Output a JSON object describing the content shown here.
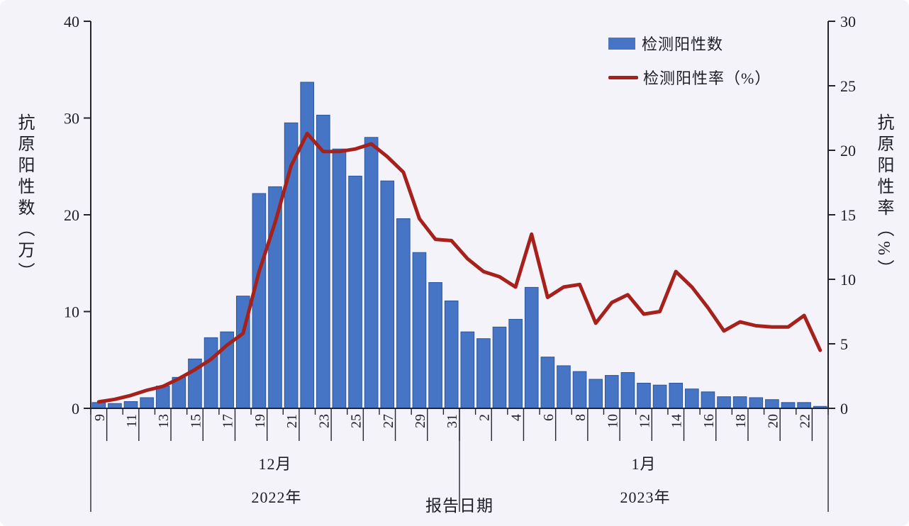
{
  "figure": {
    "background_color": "#f3f3f9",
    "bar_color": "#4575c4",
    "bar_edge_color": "#2d559e",
    "line_color": "#a6211c",
    "axis_color": "#23242e",
    "text_color": "#1c1c26",
    "legend": {
      "bar_label": "检测阳性数",
      "line_label": "检测阳性率（%）"
    },
    "left_axis": {
      "title": "抗原阳性数（万）",
      "ticks": [
        0,
        10,
        20,
        30,
        40
      ],
      "max": 40
    },
    "right_axis": {
      "title": "抗原阳性率（%）",
      "ticks": [
        0,
        5,
        10,
        15,
        20,
        25,
        30
      ],
      "max": 30
    },
    "x_axis": {
      "title": "报告日期",
      "tick_labels": [
        "9",
        "11",
        "13",
        "15",
        "17",
        "19",
        "21",
        "23",
        "25",
        "27",
        "29",
        "31",
        "2",
        "4",
        "6",
        "8",
        "10",
        "12",
        "14",
        "16",
        "18",
        "20",
        "22"
      ],
      "groups": [
        {
          "month": "12月",
          "year": "2022年"
        },
        {
          "month": "1月",
          "year": "2023年"
        }
      ]
    }
  },
  "chart_data": {
    "type": "bar",
    "subtype": "bar+line combo, dual y-axes",
    "categories": [
      "12-9",
      "12-10",
      "12-11",
      "12-12",
      "12-13",
      "12-14",
      "12-15",
      "12-16",
      "12-17",
      "12-18",
      "12-19",
      "12-20",
      "12-21",
      "12-22",
      "12-23",
      "12-24",
      "12-25",
      "12-26",
      "12-27",
      "12-28",
      "12-29",
      "12-30",
      "12-31",
      "1-1",
      "1-2",
      "1-3",
      "1-4",
      "1-5",
      "1-6",
      "1-7",
      "1-8",
      "1-9",
      "1-10",
      "1-11",
      "1-12",
      "1-13",
      "1-14",
      "1-15",
      "1-16",
      "1-17",
      "1-18",
      "1-19",
      "1-20",
      "1-21",
      "1-22",
      "1-23"
    ],
    "series": [
      {
        "name": "检测阳性数",
        "type": "bar",
        "y_axis": "left",
        "unit": "万",
        "color": "#4575c4",
        "values": [
          0.6,
          0.5,
          0.7,
          1.1,
          2.3,
          3.2,
          5.1,
          7.3,
          7.9,
          11.6,
          22.2,
          22.9,
          29.5,
          33.7,
          30.3,
          26.8,
          24.0,
          28.0,
          23.5,
          19.6,
          16.1,
          13.0,
          11.1,
          7.9,
          7.2,
          8.4,
          9.2,
          12.5,
          5.3,
          4.4,
          3.8,
          3.0,
          3.4,
          3.7,
          2.6,
          2.4,
          2.6,
          2.0,
          1.7,
          1.2,
          1.2,
          1.1,
          0.9,
          0.6,
          0.6,
          0.2
        ]
      },
      {
        "name": "检测阳性率（%）",
        "type": "line",
        "y_axis": "right",
        "unit": "%",
        "color": "#a6211c",
        "values": [
          0.5,
          0.7,
          1.0,
          1.4,
          1.7,
          2.3,
          3.0,
          3.8,
          4.9,
          5.8,
          10.6,
          14.4,
          18.8,
          21.3,
          19.9,
          19.9,
          20.1,
          20.5,
          19.5,
          18.3,
          14.7,
          13.1,
          13.0,
          11.6,
          10.6,
          10.2,
          9.4,
          13.5,
          8.6,
          9.4,
          9.6,
          6.6,
          8.2,
          8.8,
          7.3,
          7.5,
          10.6,
          9.4,
          7.8,
          6.0,
          6.7,
          6.4,
          6.3,
          6.3,
          7.2,
          4.5
        ]
      }
    ],
    "xlabel": "报告日期",
    "ylabel_left": "抗原阳性数（万）",
    "ylabel_right": "抗原阳性率（%）",
    "ylim_left": [
      0,
      40
    ],
    "ylim_right": [
      0,
      30
    ],
    "grid": false,
    "legend_position": "top-right"
  }
}
